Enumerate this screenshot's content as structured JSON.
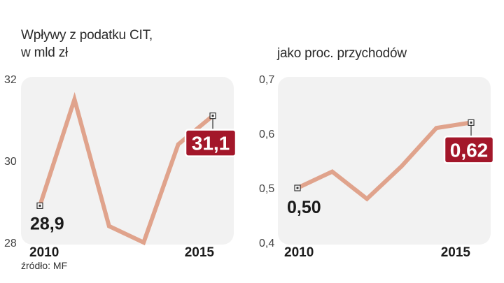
{
  "chart_data": [
    {
      "type": "line",
      "title": "Wpływy z podatku  CIT,",
      "subtitle": "w mld zł",
      "x": [
        2010,
        2011,
        2012,
        2013,
        2014,
        2015
      ],
      "x_tick_labels": [
        "2010",
        "2015"
      ],
      "y_ticks": [
        "32",
        "30",
        "28"
      ],
      "ylim": [
        28,
        32
      ],
      "series": [
        {
          "values": [
            28.9,
            31.5,
            28.4,
            28.0,
            30.4,
            31.1
          ]
        }
      ],
      "callouts": [
        {
          "point_index": 0,
          "label": "28,9",
          "style": "plain"
        },
        {
          "point_index": 5,
          "label": "31,1",
          "style": "boxed"
        }
      ],
      "colors": {
        "line": "#e0a38c",
        "panel": "#f2f2f2",
        "callout_box": "#a3172a"
      }
    },
    {
      "type": "line",
      "title": "jako proc. przychodów",
      "x": [
        2010,
        2011,
        2012,
        2013,
        2014,
        2015
      ],
      "x_tick_labels": [
        "2010",
        "2015"
      ],
      "y_ticks": [
        "0,7",
        "0,6",
        "0,5",
        "0,4"
      ],
      "ylim": [
        0.4,
        0.7
      ],
      "series": [
        {
          "values": [
            0.5,
            0.53,
            0.48,
            0.54,
            0.61,
            0.62
          ]
        }
      ],
      "callouts": [
        {
          "point_index": 0,
          "label": "0,50",
          "style": "plain"
        },
        {
          "point_index": 5,
          "label": "0,62",
          "style": "boxed"
        }
      ],
      "colors": {
        "line": "#e0a38c",
        "panel": "#f2f2f2",
        "callout_box": "#a3172a"
      }
    }
  ],
  "source": "źródło: MF"
}
